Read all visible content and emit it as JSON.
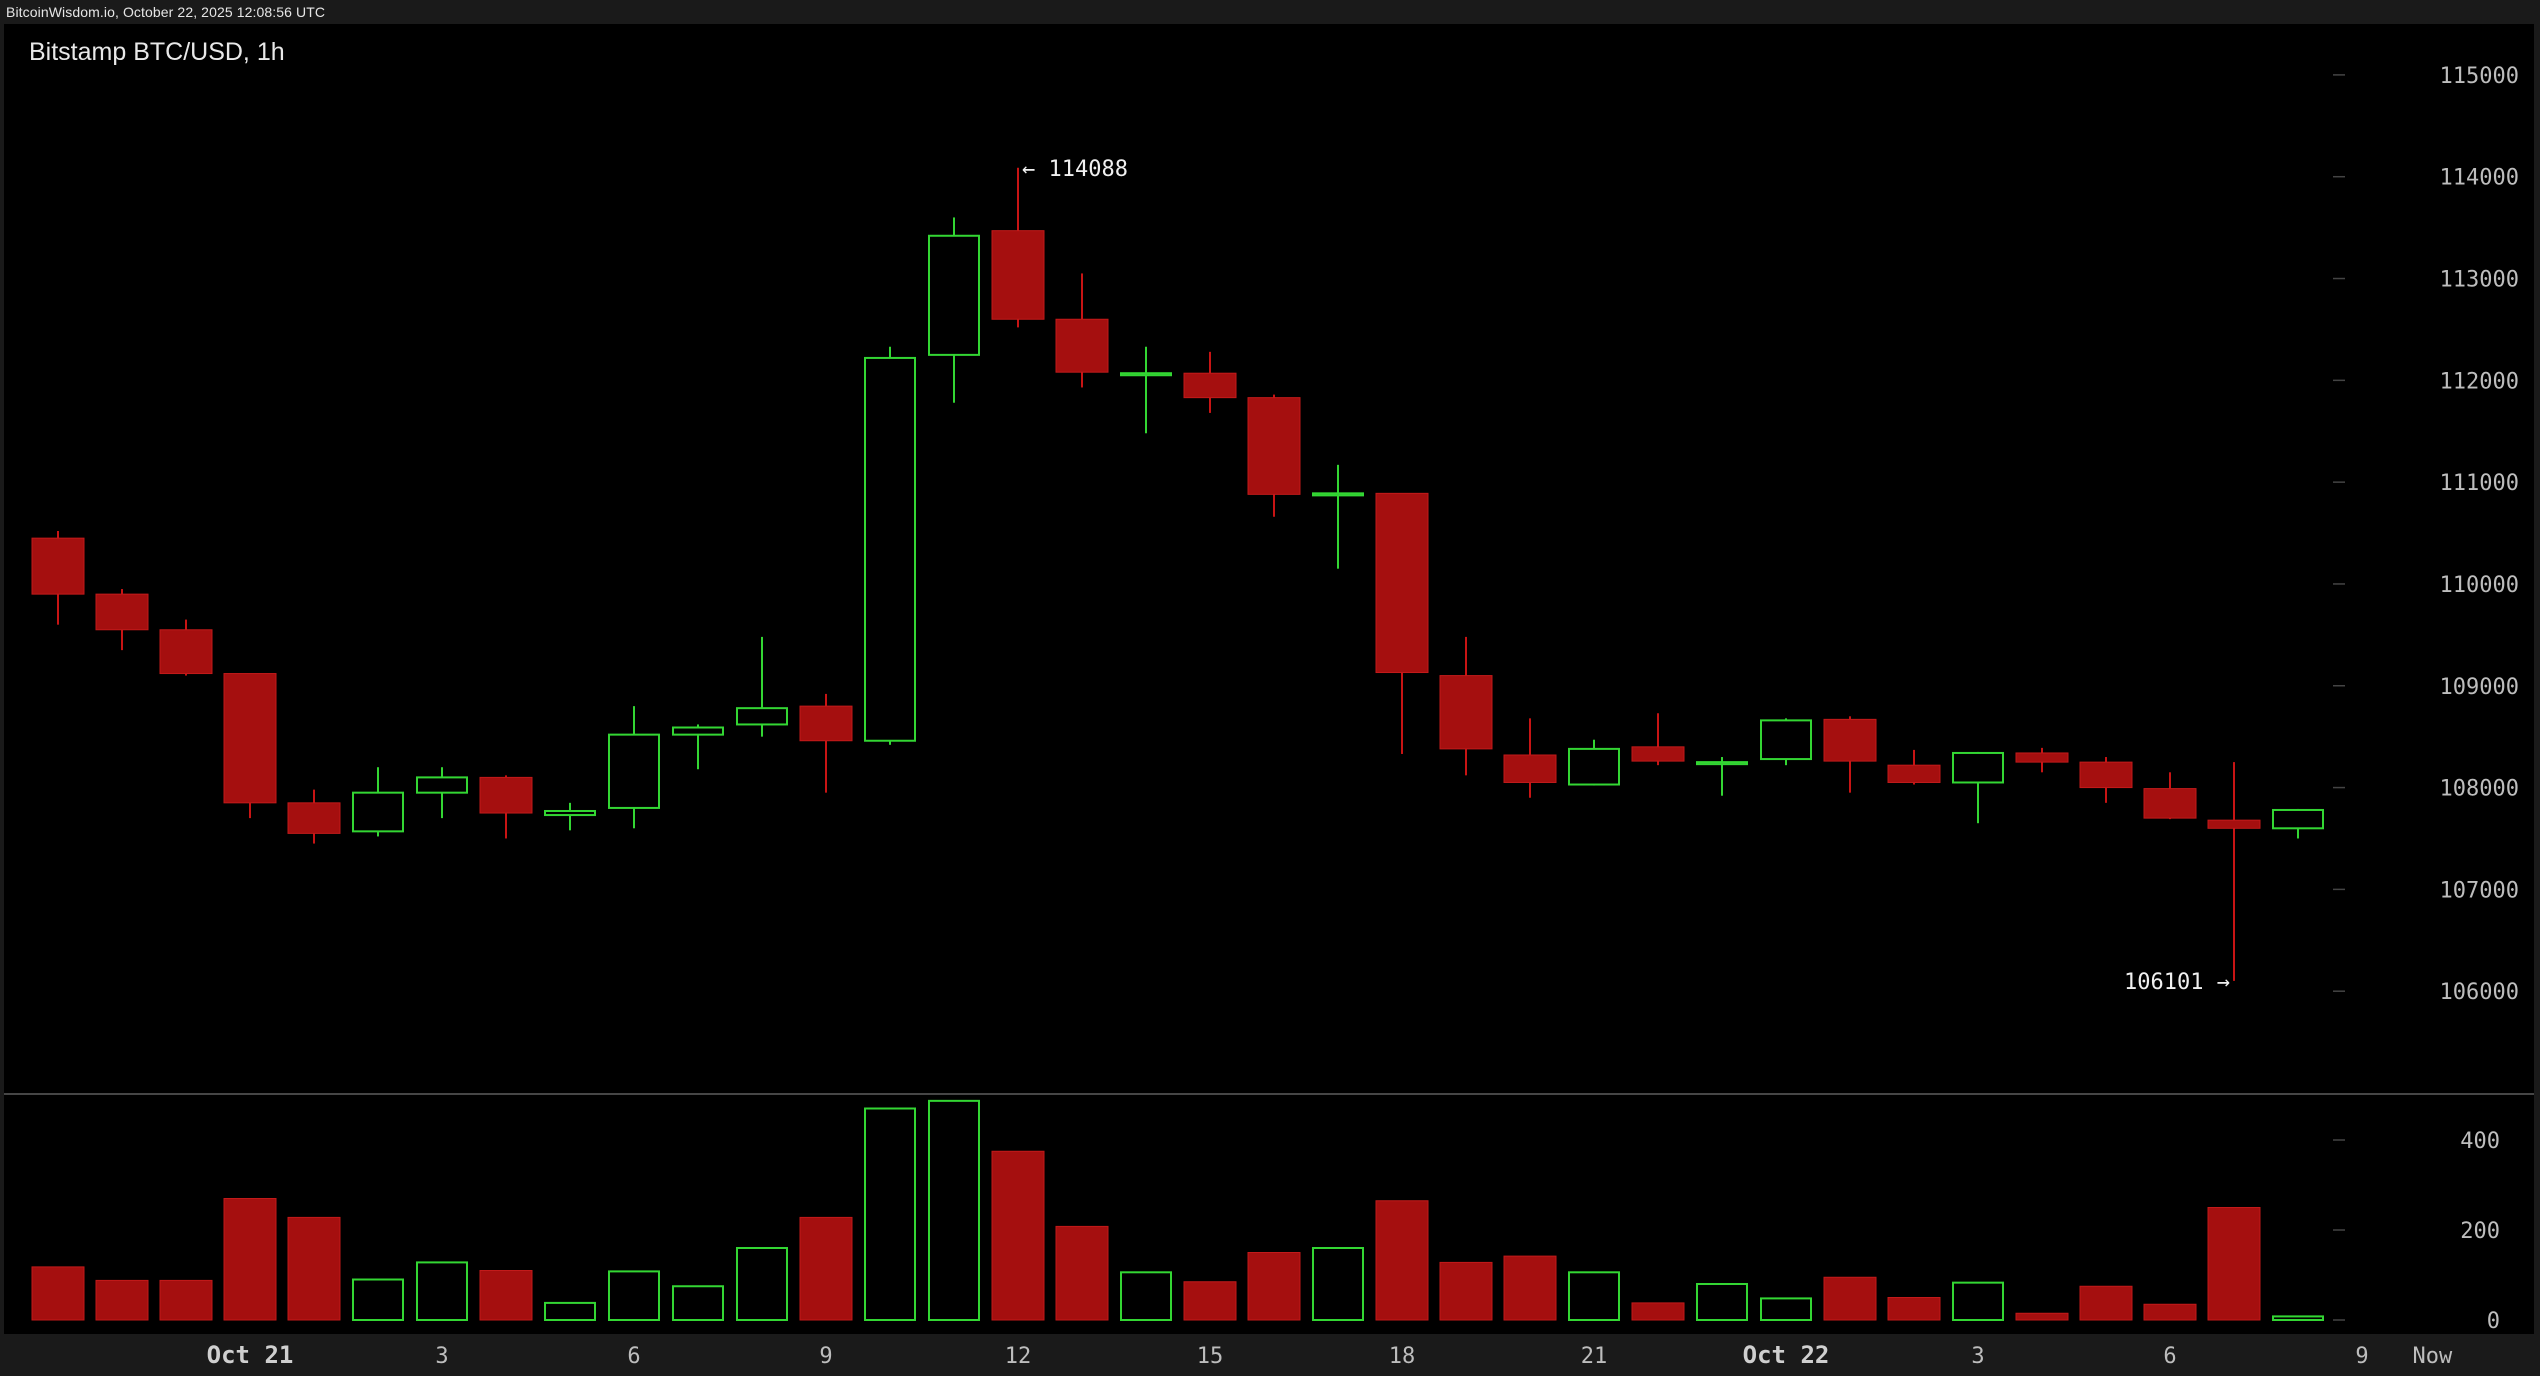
{
  "header": {
    "source_line": "BitcoinWisdom.io, October 22, 2025 12:08:56 UTC"
  },
  "colors": {
    "up": "#33d633",
    "down": "#a50f0f",
    "background": "#000000",
    "frame": "#1a1a1a",
    "tick_mark": "#444444"
  },
  "chart_data": {
    "type": "candlestick",
    "title": "Bitstamp BTC/USD, 1h",
    "price_axis": {
      "ylim": [
        105000,
        115500
      ],
      "ticks": [
        106000,
        107000,
        108000,
        109000,
        110000,
        111000,
        112000,
        113000,
        114000,
        115000
      ]
    },
    "volume_axis": {
      "ylim": [
        0,
        500
      ],
      "ticks": [
        0,
        200,
        400
      ]
    },
    "x_labels": [
      {
        "label": "Oct 21",
        "index": 3,
        "bold": true
      },
      {
        "label": "3",
        "index": 6,
        "bold": false
      },
      {
        "label": "6",
        "index": 9,
        "bold": false
      },
      {
        "label": "9",
        "index": 12,
        "bold": false
      },
      {
        "label": "12",
        "index": 15,
        "bold": false
      },
      {
        "label": "15",
        "index": 18,
        "bold": false
      },
      {
        "label": "18",
        "index": 21,
        "bold": false
      },
      {
        "label": "21",
        "index": 24,
        "bold": false
      },
      {
        "label": "Oct 22",
        "index": 27,
        "bold": true
      },
      {
        "label": "3",
        "index": 30,
        "bold": false
      },
      {
        "label": "6",
        "index": 33,
        "bold": false
      },
      {
        "label": "9",
        "index": 36,
        "bold": false
      },
      {
        "label": "Now",
        "index": 37.1,
        "bold": false
      }
    ],
    "annotations": [
      {
        "text": "← 114088",
        "index": 15,
        "value": 114088,
        "side": "right"
      },
      {
        "text": "106101 →",
        "index": 34,
        "value": 106101,
        "side": "left"
      }
    ],
    "candles": [
      {
        "open": 110450,
        "high": 110520,
        "low": 109600,
        "close": 109900,
        "volume": 118
      },
      {
        "open": 109900,
        "high": 109950,
        "low": 109350,
        "close": 109550,
        "volume": 88
      },
      {
        "open": 109550,
        "high": 109650,
        "low": 109100,
        "close": 109120,
        "volume": 88
      },
      {
        "open": 109120,
        "high": 109120,
        "low": 107700,
        "close": 107850,
        "volume": 270
      },
      {
        "open": 107850,
        "high": 107980,
        "low": 107450,
        "close": 107550,
        "volume": 228
      },
      {
        "open": 107570,
        "high": 108200,
        "low": 107520,
        "close": 107950,
        "volume": 90
      },
      {
        "open": 107950,
        "high": 108200,
        "low": 107700,
        "close": 108100,
        "volume": 128
      },
      {
        "open": 108100,
        "high": 108120,
        "low": 107500,
        "close": 107750,
        "volume": 110
      },
      {
        "open": 107730,
        "high": 107850,
        "low": 107580,
        "close": 107770,
        "volume": 38
      },
      {
        "open": 107800,
        "high": 108800,
        "low": 107600,
        "close": 108520,
        "volume": 108
      },
      {
        "open": 108520,
        "high": 108620,
        "low": 108180,
        "close": 108590,
        "volume": 75
      },
      {
        "open": 108620,
        "high": 109480,
        "low": 108500,
        "close": 108780,
        "volume": 160
      },
      {
        "open": 108800,
        "high": 108920,
        "low": 107950,
        "close": 108460,
        "volume": 228
      },
      {
        "open": 108460,
        "high": 112330,
        "low": 108420,
        "close": 112220,
        "volume": 470
      },
      {
        "open": 112250,
        "high": 113600,
        "low": 111780,
        "close": 113420,
        "volume": 487
      },
      {
        "open": 113470,
        "high": 114088,
        "low": 112520,
        "close": 112600,
        "volume": 375
      },
      {
        "open": 112600,
        "high": 113050,
        "low": 111930,
        "close": 112080,
        "volume": 208
      },
      {
        "open": 112050,
        "high": 112330,
        "low": 111480,
        "close": 112070,
        "volume": 106
      },
      {
        "open": 112070,
        "high": 112280,
        "low": 111680,
        "close": 111830,
        "volume": 85
      },
      {
        "open": 111830,
        "high": 111860,
        "low": 110660,
        "close": 110880,
        "volume": 150
      },
      {
        "open": 110870,
        "high": 111170,
        "low": 110150,
        "close": 110890,
        "volume": 160
      },
      {
        "open": 110890,
        "high": 110890,
        "low": 108330,
        "close": 109130,
        "volume": 265
      },
      {
        "open": 109100,
        "high": 109480,
        "low": 108120,
        "close": 108380,
        "volume": 128
      },
      {
        "open": 108320,
        "high": 108680,
        "low": 107900,
        "close": 108050,
        "volume": 142
      },
      {
        "open": 108030,
        "high": 108470,
        "low": 108020,
        "close": 108380,
        "volume": 106
      },
      {
        "open": 108400,
        "high": 108730,
        "low": 108220,
        "close": 108260,
        "volume": 38
      },
      {
        "open": 108230,
        "high": 108300,
        "low": 107920,
        "close": 108250,
        "volume": 80
      },
      {
        "open": 108280,
        "high": 108680,
        "low": 108220,
        "close": 108660,
        "volume": 48
      },
      {
        "open": 108670,
        "high": 108700,
        "low": 107950,
        "close": 108260,
        "volume": 95
      },
      {
        "open": 108220,
        "high": 108370,
        "low": 108030,
        "close": 108050,
        "volume": 50
      },
      {
        "open": 108050,
        "high": 108350,
        "low": 107650,
        "close": 108340,
        "volume": 83
      },
      {
        "open": 108340,
        "high": 108390,
        "low": 108150,
        "close": 108250,
        "volume": 15
      },
      {
        "open": 108250,
        "high": 108300,
        "low": 107850,
        "close": 108000,
        "volume": 75
      },
      {
        "open": 107990,
        "high": 108150,
        "low": 107690,
        "close": 107700,
        "volume": 35
      },
      {
        "open": 107680,
        "high": 108250,
        "low": 106101,
        "close": 107600,
        "volume": 250
      },
      {
        "open": 107600,
        "high": 107790,
        "low": 107500,
        "close": 107780,
        "volume": 8
      }
    ]
  }
}
